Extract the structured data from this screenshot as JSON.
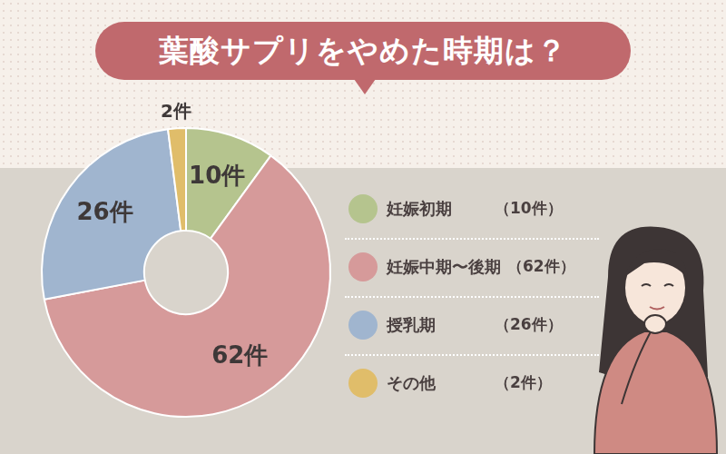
{
  "chart_data": {
    "type": "doughnut",
    "title": "葉酸サプリをやめた時期は？",
    "categories": [
      "妊娠初期",
      "妊娠中期〜後期",
      "授乳期",
      "その他"
    ],
    "values": [
      10,
      62,
      26,
      2
    ],
    "value_labels": [
      "10件",
      "62件",
      "26件",
      "2件"
    ],
    "legend_values": [
      "（10件）",
      "（62件）",
      "（26件）",
      "（2件）"
    ],
    "colors": [
      "#b5c48e",
      "#d69a9a",
      "#a0b5cf",
      "#e0bd6a"
    ],
    "data_labels": true,
    "legend": "right"
  }
}
